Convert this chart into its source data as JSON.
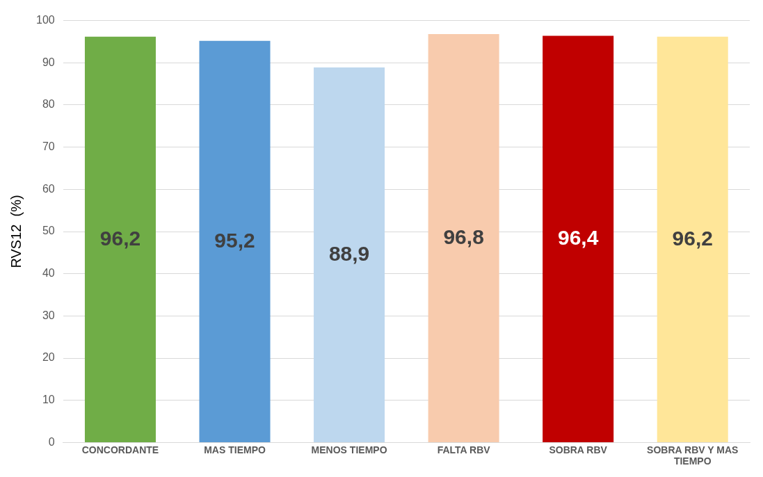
{
  "chart_data": {
    "type": "bar",
    "ylabel": "RVS12  (%)",
    "categories": [
      "CONCORDANTE",
      "MAS TIEMPO",
      "MENOS TIEMPO",
      "FALTA RBV",
      "SOBRA RBV",
      "SOBRA RBV Y MAS TIEMPO"
    ],
    "values": [
      96.2,
      95.2,
      88.9,
      96.8,
      96.4,
      96.2
    ],
    "value_labels": [
      "96,2",
      "95,2",
      "88,9",
      "96,8",
      "96,4",
      "96,2"
    ],
    "colors": [
      "#70ad47",
      "#5b9bd5",
      "#bdd7ee",
      "#f8cbad",
      "#c00000",
      "#ffe699"
    ],
    "ylim": [
      0,
      100
    ],
    "yticks": [
      0,
      10,
      20,
      30,
      40,
      50,
      60,
      70,
      80,
      90,
      100
    ],
    "grid": "y",
    "legend": false
  }
}
